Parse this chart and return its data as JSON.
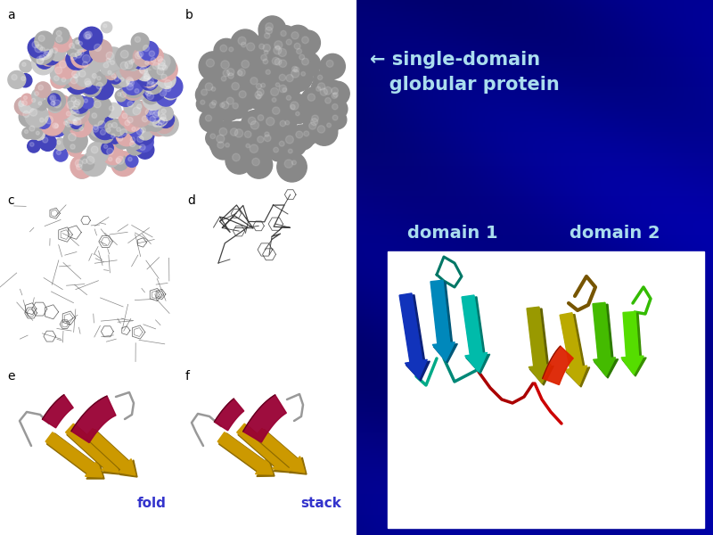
{
  "fig_width": 8.0,
  "fig_height": 6.0,
  "panel_labels": [
    "a",
    "b",
    "c",
    "d",
    "e",
    "f"
  ],
  "text_arrow_label_line1": "← single-domain",
  "text_arrow_label_line2": "   globular protein",
  "text_domain1": "domain 1",
  "text_domain2": "domain 2",
  "text_fold": "fold",
  "text_stack": "stack",
  "label_blue_color": "#3333CC",
  "text_cyan_color": "#AADDEE",
  "white_color": "#FFFFFF",
  "dark_blue_bg": "#000088",
  "sphere_gray": "#AAAAAA",
  "sphere_blue": "#4444CC",
  "sphere_pink": "#DDAAAA",
  "sphere_gray_b": "#888888",
  "gold_color": "#CC9900",
  "crimson_color": "#990033",
  "wire_color": "#555555",
  "wire_color_d": "#333333"
}
